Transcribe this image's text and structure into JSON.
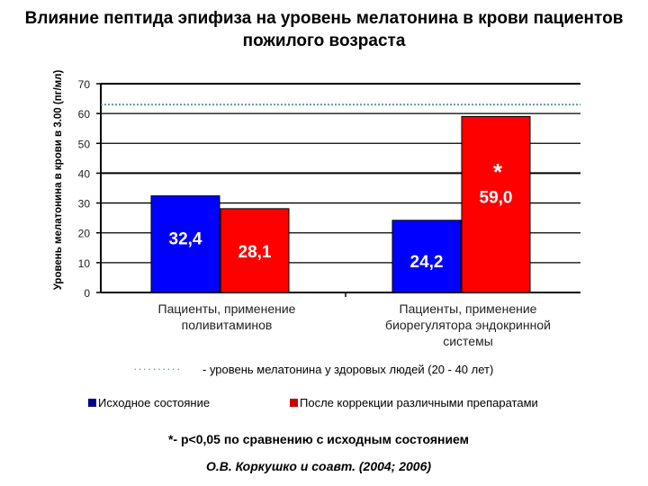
{
  "chart_data": {
    "type": "bar",
    "title": "Влияние пептида эпифиза на уровень мелатонина в крови пациентов пожилого возраста",
    "ylabel": "Уровень мелатонина в крови в 3.00 (пг/мл)",
    "ylim": [
      0,
      70
    ],
    "yticks": [
      "0",
      "10",
      "20",
      "30",
      "40",
      "50",
      "60",
      "70"
    ],
    "categories": [
      [
        "Пациенты, применение",
        "поливитаминов"
      ],
      [
        "Пациенты, применение",
        "биорегулятора эндокринной",
        "системы"
      ]
    ],
    "series": [
      {
        "name": "Исходное состояние",
        "color": "#0000ff",
        "values": [
          32.4,
          24.2
        ],
        "labels": [
          "32,4",
          "24,2"
        ]
      },
      {
        "name": "После коррекции различными препаратами",
        "color": "#ff0000",
        "values": [
          28.1,
          59.0
        ],
        "labels": [
          "28,1",
          "59,0"
        ]
      }
    ],
    "reference_line": {
      "value": 63,
      "color": "#5a9a9a",
      "label": "- уровень мелатонина у здоровых людей (20 - 40 лет)"
    },
    "annotation": "*",
    "grid": true,
    "legend": "bottom"
  },
  "footnote": "*- p<0,05 по сравнению с исходным состоянием",
  "citation": "О.В. Коркушко и соавт. (2004; 2006)"
}
